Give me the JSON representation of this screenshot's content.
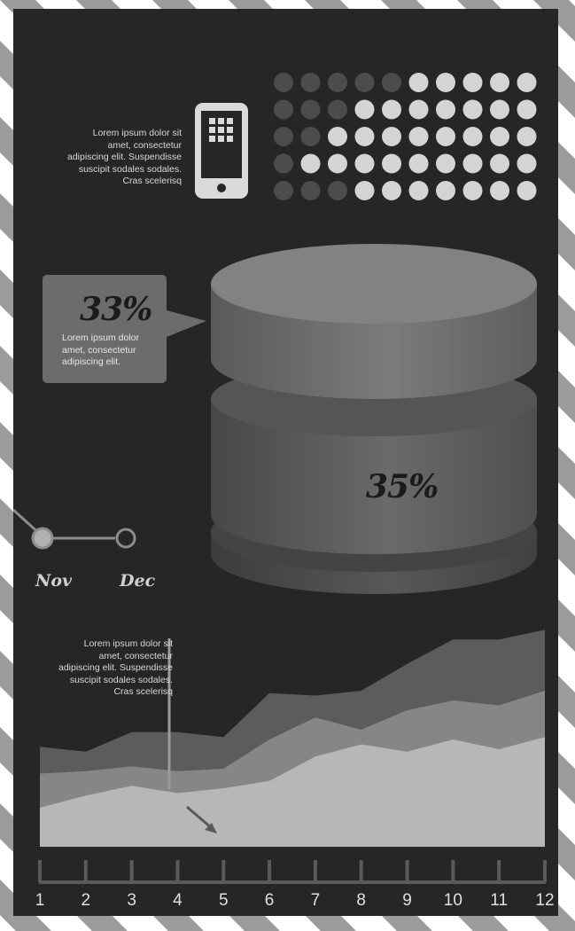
{
  "intro": {
    "text": "Lorem ipsum dolor sit\namet, consectetur\nadipiscing elit. Suspendisse\nsuscipit sodales sodales.\nCras scelerisq"
  },
  "dot_grid": {
    "rows": 5,
    "columns": 10,
    "row_filled": [
      5,
      7,
      8,
      9,
      7
    ],
    "filled_color": "#d4d4d4",
    "empty_color": "#4c4c4c"
  },
  "callout": {
    "percent": "33%",
    "text": "Lorem ipsum dolor\namet, consectetur\nadipiscing elit."
  },
  "cylinder": {
    "percent": "35%"
  },
  "timeline": {
    "months": [
      "Nov",
      "Dec"
    ]
  },
  "annotation": {
    "text": "Lorem ipsum dolor sit\namet, consectetur\nadipiscing elit. Suspendisse\nsuscipit sodales sodales.\nCras scelerisq"
  },
  "chart_data": {
    "type": "area",
    "x": [
      1,
      2,
      3,
      4,
      5,
      6,
      7,
      8,
      9,
      10,
      11,
      12
    ],
    "xlabel": "",
    "ylabel": "",
    "ylim": [
      0,
      100
    ],
    "series": [
      {
        "values": [
          41,
          39,
          47,
          47,
          45,
          63,
          62,
          64,
          75,
          85,
          85,
          89
        ],
        "color": "#5c5c5c"
      },
      {
        "values": [
          30,
          31,
          33,
          31,
          32,
          44,
          53,
          48,
          56,
          60,
          58,
          64
        ],
        "color": "#868686"
      },
      {
        "values": [
          16,
          21,
          25,
          22,
          24,
          27,
          37,
          42,
          39,
          44,
          40,
          45
        ],
        "color": "#b7b7b7"
      }
    ]
  }
}
